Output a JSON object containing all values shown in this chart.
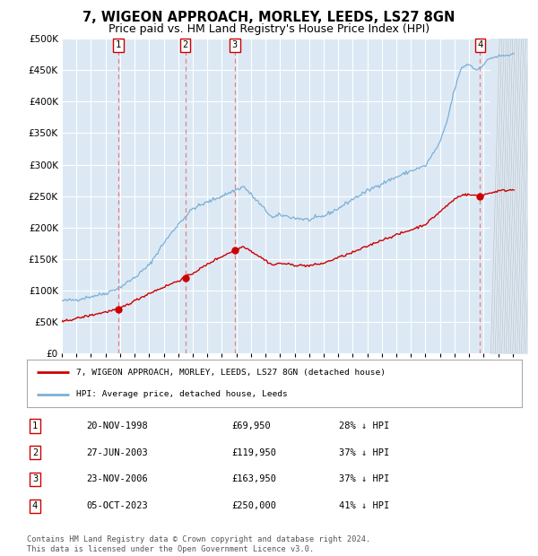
{
  "title": "7, WIGEON APPROACH, MORLEY, LEEDS, LS27 8GN",
  "subtitle": "Price paid vs. HM Land Registry's House Price Index (HPI)",
  "title_fontsize": 10.5,
  "subtitle_fontsize": 9,
  "bg_color": "#dce9f5",
  "ylim": [
    0,
    500000
  ],
  "yticks": [
    0,
    50000,
    100000,
    150000,
    200000,
    250000,
    300000,
    350000,
    400000,
    450000,
    500000
  ],
  "xmin": 1995,
  "xmax": 2027,
  "legend_labels": [
    "7, WIGEON APPROACH, MORLEY, LEEDS, LS27 8GN (detached house)",
    "HPI: Average price, detached house, Leeds"
  ],
  "hpi_color": "#7bafd4",
  "price_color": "#cc0000",
  "dashed_color": "#e88080",
  "transactions": [
    {
      "num": 1,
      "date": "20-NOV-1998",
      "price": 69950,
      "year": 1998.89
    },
    {
      "num": 2,
      "date": "27-JUN-2003",
      "price": 119950,
      "year": 2003.49
    },
    {
      "num": 3,
      "date": "23-NOV-2006",
      "price": 163950,
      "year": 2006.89
    },
    {
      "num": 4,
      "date": "05-OCT-2023",
      "price": 250000,
      "year": 2023.75
    }
  ],
  "table_rows": [
    [
      "1",
      "20-NOV-1998",
      "£69,950",
      "28% ↓ HPI"
    ],
    [
      "2",
      "27-JUN-2003",
      "£119,950",
      "37% ↓ HPI"
    ],
    [
      "3",
      "23-NOV-2006",
      "£163,950",
      "37% ↓ HPI"
    ],
    [
      "4",
      "05-OCT-2023",
      "£250,000",
      "41% ↓ HPI"
    ]
  ],
  "footnote": "Contains HM Land Registry data © Crown copyright and database right 2024.\nThis data is licensed under the Open Government Licence v3.0.",
  "hpi_keypoints": [
    [
      1995.0,
      83000
    ],
    [
      1996.0,
      85000
    ],
    [
      1997.0,
      90000
    ],
    [
      1998.0,
      95000
    ],
    [
      1999.0,
      105000
    ],
    [
      2000.0,
      120000
    ],
    [
      2001.0,
      140000
    ],
    [
      2002.0,
      175000
    ],
    [
      2003.0,
      205000
    ],
    [
      2004.0,
      230000
    ],
    [
      2005.0,
      240000
    ],
    [
      2006.5,
      255000
    ],
    [
      2007.5,
      265000
    ],
    [
      2008.5,
      240000
    ],
    [
      2009.5,
      215000
    ],
    [
      2010.0,
      220000
    ],
    [
      2011.0,
      215000
    ],
    [
      2012.0,
      212000
    ],
    [
      2013.0,
      218000
    ],
    [
      2014.0,
      230000
    ],
    [
      2015.0,
      245000
    ],
    [
      2016.0,
      258000
    ],
    [
      2017.0,
      270000
    ],
    [
      2018.0,
      280000
    ],
    [
      2019.0,
      290000
    ],
    [
      2020.0,
      298000
    ],
    [
      2021.0,
      335000
    ],
    [
      2021.5,
      370000
    ],
    [
      2022.0,
      420000
    ],
    [
      2022.5,
      455000
    ],
    [
      2023.0,
      460000
    ],
    [
      2023.5,
      450000
    ],
    [
      2024.0,
      460000
    ],
    [
      2024.5,
      470000
    ],
    [
      2025.0,
      472000
    ],
    [
      2026.0,
      475000
    ]
  ],
  "price_keypoints": [
    [
      1995.0,
      50000
    ],
    [
      1998.89,
      69950
    ],
    [
      2001.0,
      95000
    ],
    [
      2003.49,
      119950
    ],
    [
      2005.5,
      148000
    ],
    [
      2006.89,
      163950
    ],
    [
      2007.5,
      170000
    ],
    [
      2008.5,
      155000
    ],
    [
      2009.5,
      140000
    ],
    [
      2010.0,
      143000
    ],
    [
      2011.0,
      140000
    ],
    [
      2012.0,
      139000
    ],
    [
      2013.0,
      143000
    ],
    [
      2014.0,
      152000
    ],
    [
      2015.0,
      160000
    ],
    [
      2016.0,
      170000
    ],
    [
      2017.0,
      180000
    ],
    [
      2018.0,
      188000
    ],
    [
      2019.0,
      196000
    ],
    [
      2020.0,
      205000
    ],
    [
      2021.0,
      225000
    ],
    [
      2021.5,
      235000
    ],
    [
      2022.0,
      245000
    ],
    [
      2022.5,
      252000
    ],
    [
      2023.0,
      252000
    ],
    [
      2023.75,
      250000
    ],
    [
      2024.0,
      252000
    ],
    [
      2024.5,
      255000
    ],
    [
      2025.0,
      258000
    ],
    [
      2026.0,
      260000
    ]
  ]
}
